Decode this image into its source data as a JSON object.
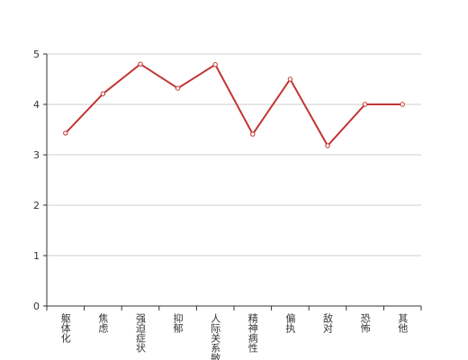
{
  "chart_data": {
    "type": "line",
    "categories": [
      "躯体化",
      "焦虑",
      "强迫症状",
      "抑郁",
      "人际关系敏感",
      "精神病性",
      "偏执",
      "敌对",
      "恐怖",
      "其他"
    ],
    "values": [
      3.43,
      4.21,
      4.8,
      4.32,
      4.79,
      3.41,
      4.5,
      3.18,
      4.0,
      4.0
    ],
    "color": "#c23531",
    "ylim": [
      0,
      5
    ],
    "yticks": [
      0,
      1,
      2,
      3,
      4,
      5
    ],
    "grid": true
  }
}
